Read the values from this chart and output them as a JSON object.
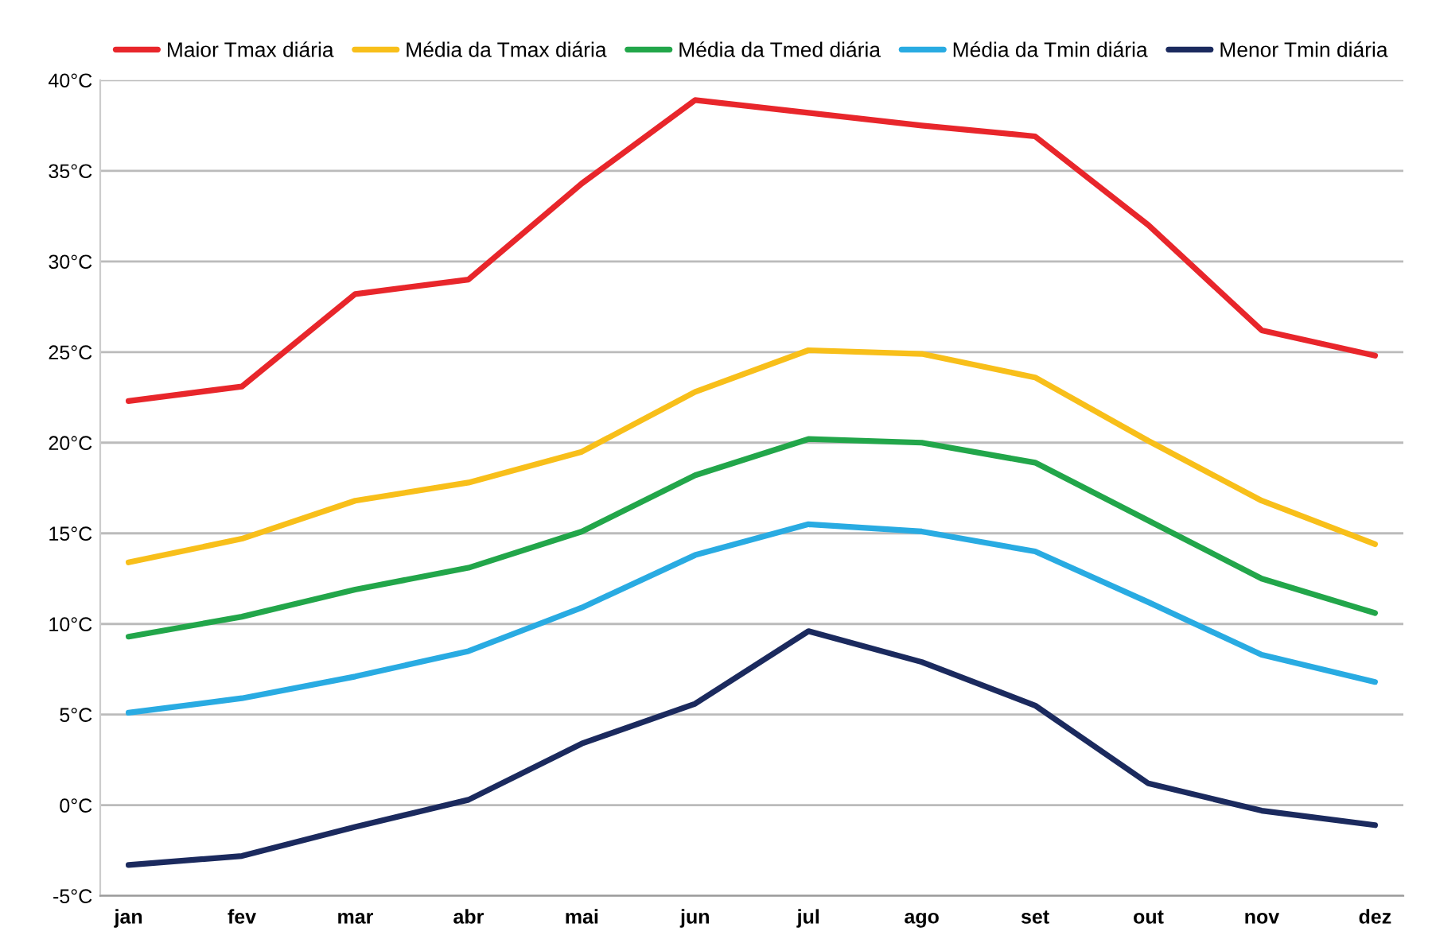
{
  "chart_data": {
    "type": "line",
    "categories": [
      "jan",
      "fev",
      "mar",
      "abr",
      "mai",
      "jun",
      "jul",
      "ago",
      "set",
      "out",
      "nov",
      "dez"
    ],
    "series": [
      {
        "name": "Maior Tmax diária",
        "color": "#e8262b",
        "values": [
          22.3,
          23.1,
          28.2,
          29.0,
          34.3,
          38.9,
          38.2,
          37.5,
          36.9,
          32.0,
          26.2,
          24.8
        ]
      },
      {
        "name": "Média da Tmax diária",
        "color": "#f8bf1a",
        "values": [
          13.4,
          14.7,
          16.8,
          17.8,
          19.5,
          22.8,
          25.1,
          24.9,
          23.6,
          20.1,
          16.8,
          14.4
        ]
      },
      {
        "name": "Média da Tmed diária",
        "color": "#22a64a",
        "values": [
          9.3,
          10.4,
          11.9,
          13.1,
          15.1,
          18.2,
          20.2,
          20.0,
          18.9,
          15.7,
          12.5,
          10.6
        ]
      },
      {
        "name": "Média da Tmin diária",
        "color": "#29abe2",
        "values": [
          5.1,
          5.9,
          7.1,
          8.5,
          10.9,
          13.8,
          15.5,
          15.1,
          14.0,
          11.2,
          8.3,
          6.8
        ]
      },
      {
        "name": "Menor Tmin diária",
        "color": "#1b2a5e",
        "values": [
          -3.3,
          -2.8,
          -1.2,
          0.3,
          3.4,
          5.6,
          9.6,
          7.9,
          5.5,
          1.2,
          -0.3,
          -1.1
        ]
      }
    ],
    "ylim": [
      -5,
      40
    ],
    "yticks": [
      {
        "value": -5,
        "label": "-5°C"
      },
      {
        "value": 0,
        "label": "0°C"
      },
      {
        "value": 5,
        "label": "5°C"
      },
      {
        "value": 10,
        "label": "10°C"
      },
      {
        "value": 15,
        "label": "15°C"
      },
      {
        "value": 20,
        "label": "20°C"
      },
      {
        "value": 25,
        "label": "25°C"
      },
      {
        "value": 30,
        "label": "30°C"
      },
      {
        "value": 35,
        "label": "35°C"
      },
      {
        "value": 40,
        "label": "40°C"
      }
    ],
    "grid": "y",
    "legend": "top",
    "marker": "none",
    "line_style": "solid"
  }
}
